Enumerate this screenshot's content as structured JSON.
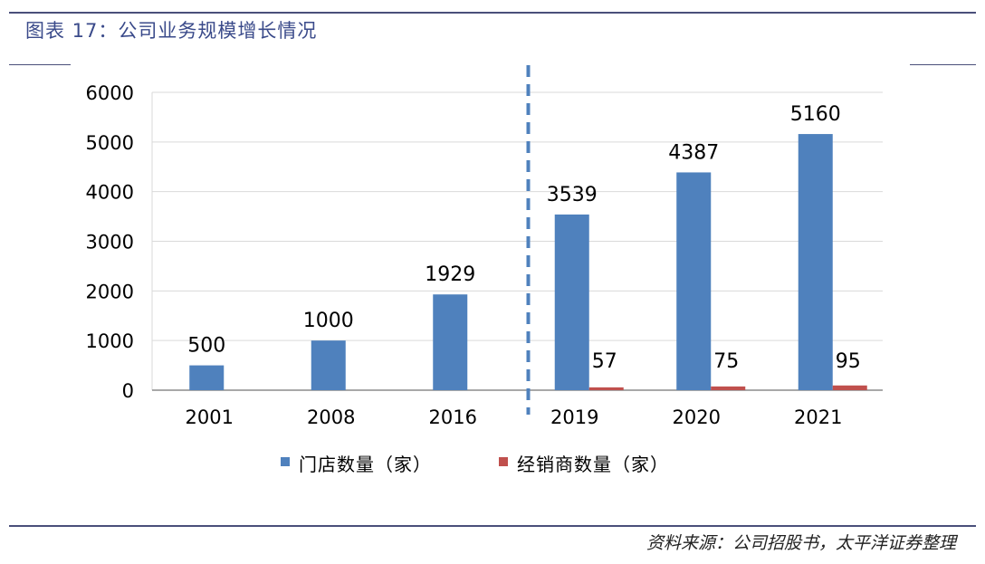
{
  "header": {
    "title": "图表 17：公司业务规模增长情况"
  },
  "footer": {
    "source": "资料来源：公司招股书，太平洋证券整理"
  },
  "chart_data": {
    "type": "bar",
    "title": "",
    "xlabel": "",
    "ylabel": "",
    "categories": [
      "2001",
      "2008",
      "2016",
      "2019",
      "2020",
      "2021"
    ],
    "ylim": [
      0,
      6000
    ],
    "yticks": [
      0,
      1000,
      2000,
      3000,
      4000,
      5000,
      6000
    ],
    "grid": true,
    "legend_position": "bottom",
    "series": [
      {
        "name": "门店数量（家）",
        "values": [
          500,
          1000,
          1929,
          3539,
          4387,
          5160
        ],
        "labels": [
          "500",
          "1000",
          "1929",
          "3539",
          "4387",
          "5160"
        ],
        "color": "#4f81bd"
      },
      {
        "name": "经销商数量（家）",
        "values": [
          null,
          null,
          null,
          57,
          75,
          95
        ],
        "labels": [
          "",
          "",
          "",
          "57",
          "75",
          "95"
        ],
        "color": "#c0504d"
      }
    ],
    "annotations": [
      "dashed divider between 2016 and 2019"
    ]
  }
}
